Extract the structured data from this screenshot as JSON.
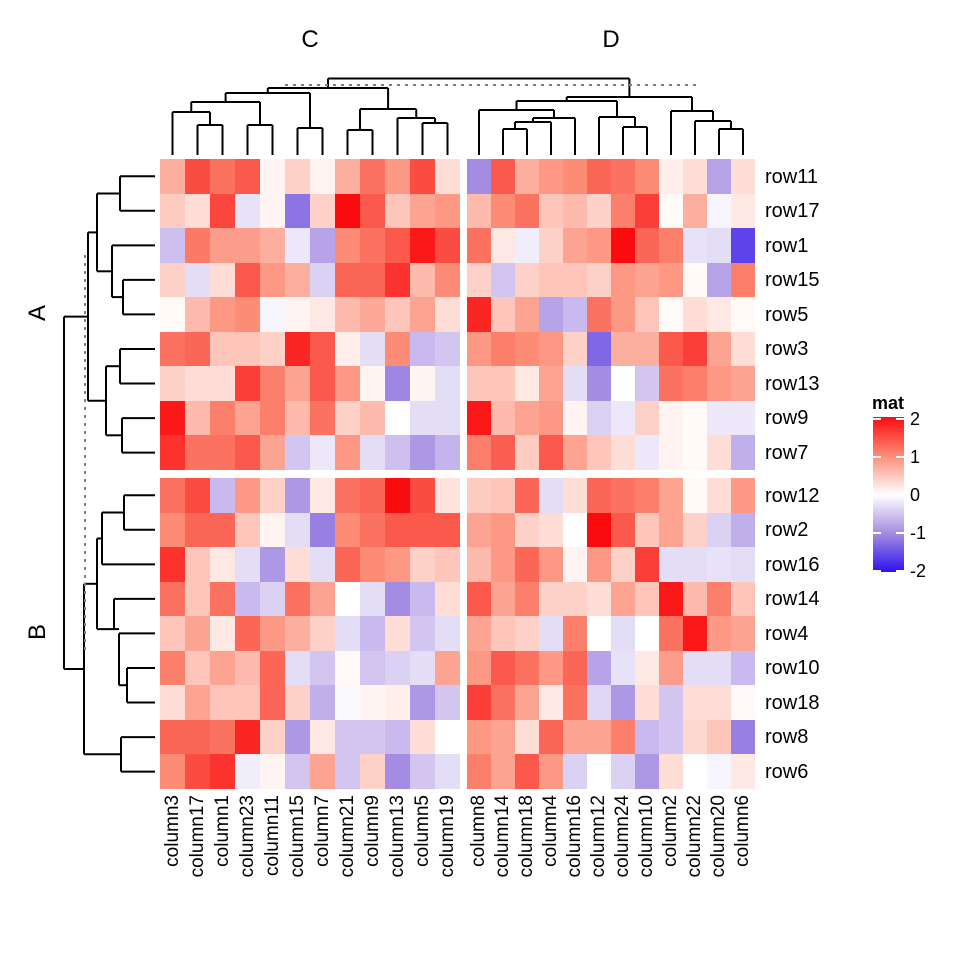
{
  "titles": {
    "col_group_left": "C",
    "col_group_right": "D",
    "row_group_top": "A",
    "row_group_bottom": "B"
  },
  "legend": {
    "title": "mat",
    "ticks": [
      "2",
      "1",
      "0",
      "-1",
      "-2"
    ],
    "tick_values": [
      2,
      1,
      0,
      -1,
      -2
    ]
  },
  "chart_data": {
    "type": "heatmap",
    "legend_title": "mat",
    "value_range": [
      -2,
      2
    ],
    "colormap": [
      [
        -2,
        "#2d12ee"
      ],
      [
        -1,
        "#a48ce2"
      ],
      [
        0,
        "#ffffff"
      ],
      [
        1,
        "#fc8c76"
      ],
      [
        2,
        "#fa0c0e"
      ]
    ],
    "rows": [
      "row11",
      "row17",
      "row1",
      "row15",
      "row5",
      "row3",
      "row13",
      "row9",
      "row7",
      "row12",
      "row2",
      "row16",
      "row14",
      "row4",
      "row10",
      "row18",
      "row8",
      "row6"
    ],
    "columns": [
      "column3",
      "column17",
      "column1",
      "column23",
      "column11",
      "column15",
      "column7",
      "column21",
      "column9",
      "column13",
      "column5",
      "column19",
      "column8",
      "column14",
      "column18",
      "column4",
      "column16",
      "column12",
      "column24",
      "column10",
      "column2",
      "column22",
      "column20",
      "column6"
    ],
    "row_groups": [
      {
        "label": "A",
        "size": 9
      },
      {
        "label": "B",
        "size": 9
      }
    ],
    "column_groups": [
      {
        "label": "C",
        "size": 12
      },
      {
        "label": "D",
        "size": 12
      }
    ],
    "values": [
      [
        0.7,
        1.5,
        1.2,
        1.4,
        0.1,
        0.4,
        0.1,
        0.7,
        1.2,
        0.9,
        1.5,
        0.3,
        -1.0,
        1.4,
        0.7,
        0.9,
        1.0,
        1.3,
        1.2,
        1.0,
        0.15,
        0.3,
        -0.8,
        0.3
      ],
      [
        0.45,
        0.3,
        1.55,
        -0.25,
        0.1,
        -1.2,
        0.4,
        2.0,
        1.4,
        0.5,
        0.8,
        0.9,
        0.6,
        1.0,
        1.2,
        0.5,
        0.6,
        0.4,
        1.1,
        1.6,
        0.05,
        0.7,
        -0.1,
        0.2
      ],
      [
        -0.55,
        1.15,
        0.85,
        0.85,
        0.7,
        -0.2,
        -0.8,
        1.0,
        1.2,
        1.4,
        1.9,
        1.5,
        1.2,
        0.2,
        -0.15,
        0.4,
        0.8,
        0.9,
        2.0,
        1.3,
        1.1,
        -0.25,
        -0.3,
        -1.6
      ],
      [
        0.4,
        -0.3,
        0.3,
        1.4,
        0.9,
        0.7,
        -0.4,
        1.3,
        1.3,
        1.7,
        0.6,
        1.0,
        0.4,
        -0.5,
        0.4,
        0.5,
        0.5,
        0.4,
        0.9,
        0.8,
        0.9,
        0.05,
        -0.8,
        1.1
      ],
      [
        0.05,
        0.6,
        0.9,
        1.0,
        -0.1,
        0.1,
        0.2,
        0.6,
        0.75,
        0.5,
        0.8,
        0.3,
        1.8,
        0.5,
        0.8,
        -0.8,
        -0.6,
        1.2,
        0.9,
        0.5,
        0.05,
        0.3,
        0.2,
        0.05
      ],
      [
        1.2,
        1.3,
        0.5,
        0.5,
        0.4,
        1.8,
        1.4,
        0.15,
        -0.3,
        1.0,
        -0.6,
        -0.5,
        0.9,
        1.1,
        1.0,
        0.9,
        0.4,
        -1.3,
        0.7,
        0.7,
        1.4,
        1.6,
        0.8,
        0.3
      ],
      [
        0.4,
        0.3,
        0.3,
        1.6,
        1.1,
        0.8,
        1.4,
        0.9,
        0.1,
        -1.05,
        0.1,
        -0.3,
        0.5,
        0.5,
        0.2,
        0.8,
        -0.3,
        -1.0,
        0.0,
        -0.5,
        1.2,
        1.1,
        0.9,
        0.8
      ],
      [
        1.9,
        0.6,
        1.1,
        0.8,
        1.1,
        0.6,
        1.2,
        0.4,
        0.6,
        0.0,
        -0.3,
        -0.3,
        1.9,
        0.6,
        0.8,
        0.9,
        0.1,
        -0.4,
        -0.2,
        0.4,
        0.1,
        0.05,
        -0.2,
        -0.2
      ],
      [
        1.7,
        1.2,
        1.2,
        1.4,
        0.8,
        -0.5,
        -0.2,
        0.9,
        -0.3,
        -0.55,
        -0.9,
        -0.65,
        1.1,
        1.35,
        0.45,
        1.4,
        0.8,
        0.5,
        0.3,
        -0.2,
        0.1,
        0.05,
        0.3,
        -0.7
      ],
      [
        1.2,
        1.5,
        -0.6,
        0.9,
        0.4,
        -0.9,
        0.2,
        1.2,
        1.3,
        2.0,
        1.5,
        0.25,
        0.45,
        0.5,
        1.3,
        -0.3,
        0.3,
        1.3,
        1.2,
        1.1,
        0.8,
        0.05,
        0.3,
        0.9
      ],
      [
        1.0,
        1.3,
        1.3,
        0.5,
        0.1,
        -0.3,
        -1.1,
        1.0,
        1.2,
        1.4,
        1.4,
        1.4,
        0.8,
        0.9,
        0.4,
        0.3,
        0.0,
        2.0,
        1.4,
        0.5,
        0.8,
        0.4,
        -0.4,
        -0.7
      ],
      [
        1.7,
        0.5,
        0.2,
        -0.3,
        -0.9,
        0.3,
        -0.3,
        1.3,
        1.0,
        0.9,
        0.4,
        0.5,
        0.6,
        0.9,
        1.3,
        0.9,
        0.1,
        0.9,
        0.4,
        1.6,
        -0.3,
        -0.3,
        -0.25,
        -0.3
      ],
      [
        1.2,
        0.5,
        1.2,
        -0.6,
        -0.4,
        1.2,
        0.8,
        0.0,
        -0.3,
        -1.0,
        -0.6,
        0.3,
        1.4,
        0.8,
        1.1,
        0.4,
        0.4,
        0.3,
        0.8,
        0.5,
        1.9,
        0.6,
        1.1,
        0.5
      ],
      [
        0.5,
        0.8,
        0.2,
        1.3,
        0.9,
        0.7,
        0.4,
        -0.3,
        -0.6,
        0.3,
        -0.5,
        -0.3,
        0.8,
        0.5,
        0.4,
        -0.3,
        1.1,
        0.0,
        -0.3,
        0.0,
        1.2,
        1.9,
        0.9,
        0.8
      ],
      [
        1.1,
        0.5,
        0.8,
        0.6,
        1.3,
        -0.3,
        -0.5,
        0.05,
        -0.5,
        -0.4,
        -0.3,
        0.8,
        0.9,
        1.4,
        1.2,
        0.9,
        1.3,
        -0.8,
        -0.25,
        0.2,
        0.85,
        -0.3,
        -0.3,
        -0.6
      ],
      [
        0.3,
        0.8,
        0.5,
        0.5,
        1.3,
        0.4,
        -0.7,
        -0.05,
        0.1,
        0.15,
        -0.9,
        -0.5,
        1.6,
        1.2,
        0.8,
        0.2,
        1.2,
        -0.35,
        -0.9,
        0.3,
        -0.5,
        0.3,
        0.3,
        0.05
      ],
      [
        1.3,
        1.3,
        1.2,
        1.8,
        0.4,
        -0.9,
        0.2,
        -0.5,
        -0.5,
        -0.6,
        0.3,
        0.0,
        0.9,
        0.8,
        0.3,
        1.3,
        0.8,
        0.8,
        1.1,
        -0.6,
        -0.5,
        0.35,
        0.5,
        -1.1
      ],
      [
        1.0,
        1.5,
        1.7,
        -0.15,
        0.1,
        -0.5,
        0.8,
        -0.5,
        0.4,
        -1.0,
        -0.5,
        -0.3,
        1.1,
        0.8,
        1.4,
        0.9,
        -0.4,
        0.0,
        -0.4,
        -0.9,
        0.3,
        0.0,
        -0.1,
        0.2
      ]
    ],
    "dendrograms": {
      "column_segments": [
        [
          197.5,
          125,
          222.5,
          125
        ],
        [
          197.5,
          125,
          197.5,
          155
        ],
        [
          222.5,
          125,
          222.5,
          155
        ],
        [
          172.5,
          112,
          210,
          112
        ],
        [
          172.5,
          112,
          172.5,
          155
        ],
        [
          210,
          112,
          210,
          125
        ],
        [
          247.5,
          125,
          272.5,
          125
        ],
        [
          247.5,
          125,
          247.5,
          155
        ],
        [
          272.5,
          125,
          272.5,
          155
        ],
        [
          191.25,
          102,
          260,
          102
        ],
        [
          191.25,
          102,
          191.25,
          112
        ],
        [
          260,
          102,
          260,
          125
        ],
        [
          297.5,
          128,
          322.5,
          128
        ],
        [
          297.5,
          128,
          297.5,
          155
        ],
        [
          322.5,
          128,
          322.5,
          155
        ],
        [
          225.6,
          93,
          310,
          93
        ],
        [
          225.6,
          93,
          225.6,
          102
        ],
        [
          310,
          93,
          310,
          128
        ],
        [
          347.5,
          130,
          372.5,
          130
        ],
        [
          347.5,
          130,
          347.5,
          155
        ],
        [
          372.5,
          130,
          372.5,
          155
        ],
        [
          422.5,
          123,
          447.5,
          123
        ],
        [
          422.5,
          123,
          422.5,
          155
        ],
        [
          447.5,
          123,
          447.5,
          155
        ],
        [
          397.5,
          118,
          435,
          118
        ],
        [
          397.5,
          118,
          397.5,
          155
        ],
        [
          435,
          118,
          435,
          123
        ],
        [
          360,
          109,
          416.25,
          109
        ],
        [
          360,
          109,
          360,
          130
        ],
        [
          416.25,
          109,
          416.25,
          118
        ],
        [
          267.8,
          88,
          388.1,
          88
        ],
        [
          267.8,
          88,
          267.8,
          93
        ],
        [
          388.1,
          88,
          388.1,
          109
        ],
        [
          503,
          129,
          527,
          129
        ],
        [
          503,
          129,
          503,
          155
        ],
        [
          527,
          129,
          527,
          155
        ],
        [
          515,
          122,
          551,
          122
        ],
        [
          515,
          122,
          515,
          129
        ],
        [
          551,
          122,
          551,
          155
        ],
        [
          533,
          118,
          575,
          118
        ],
        [
          533,
          118,
          533,
          122
        ],
        [
          575,
          118,
          575,
          155
        ],
        [
          479,
          110,
          554,
          110
        ],
        [
          479,
          110,
          479,
          155
        ],
        [
          554,
          110,
          554,
          118
        ],
        [
          623,
          127,
          647,
          127
        ],
        [
          623,
          127,
          623,
          155
        ],
        [
          647,
          127,
          647,
          155
        ],
        [
          599,
          117,
          635,
          117
        ],
        [
          599,
          117,
          599,
          155
        ],
        [
          635,
          117,
          635,
          127
        ],
        [
          516.5,
          101,
          617,
          101
        ],
        [
          516.5,
          101,
          516.5,
          110
        ],
        [
          617,
          101,
          617,
          117
        ],
        [
          719,
          129,
          743,
          129
        ],
        [
          719,
          129,
          719,
          155
        ],
        [
          743,
          129,
          743,
          155
        ],
        [
          695,
          121,
          731,
          121
        ],
        [
          695,
          121,
          695,
          155
        ],
        [
          731,
          121,
          731,
          129
        ],
        [
          671,
          111,
          713,
          111
        ],
        [
          671,
          111,
          671,
          155
        ],
        [
          713,
          111,
          713,
          121
        ],
        [
          566.75,
          97,
          692,
          97
        ],
        [
          566.75,
          97,
          566.75,
          101
        ],
        [
          692,
          97,
          692,
          111
        ],
        [
          328,
          78.5,
          629.4,
          78.5
        ],
        [
          328,
          78.5,
          328,
          88
        ],
        [
          629.4,
          78.5,
          629.4,
          97
        ]
      ],
      "row_segments": [
        [
          120,
          176.3,
          120,
          210.8
        ],
        [
          120,
          176.3,
          155,
          176.3
        ],
        [
          120,
          210.8,
          155,
          210.8
        ],
        [
          123,
          279.9,
          123,
          314.4
        ],
        [
          123,
          279.9,
          155,
          279.9
        ],
        [
          123,
          314.4,
          155,
          314.4
        ],
        [
          112,
          245.4,
          112,
          297.1
        ],
        [
          112,
          245.4,
          155,
          245.4
        ],
        [
          112,
          297.1,
          123,
          297.1
        ],
        [
          97,
          193.5,
          97,
          271.3
        ],
        [
          97,
          193.5,
          120,
          193.5
        ],
        [
          97,
          271.3,
          112,
          271.3
        ],
        [
          120,
          349,
          120,
          383.5
        ],
        [
          120,
          349,
          155,
          349
        ],
        [
          120,
          383.5,
          155,
          383.5
        ],
        [
          122,
          418.1,
          122,
          452.6
        ],
        [
          122,
          418.1,
          155,
          418.1
        ],
        [
          122,
          452.6,
          155,
          452.6
        ],
        [
          106,
          366.2,
          106,
          435.3
        ],
        [
          106,
          366.2,
          120,
          366.2
        ],
        [
          106,
          435.3,
          122,
          435.3
        ],
        [
          88,
          232.4,
          88,
          400.8
        ],
        [
          88,
          232.4,
          97,
          232.4
        ],
        [
          88,
          400.8,
          106,
          400.8
        ],
        [
          124,
          495.3,
          124,
          529.8
        ],
        [
          124,
          495.3,
          155,
          495.3
        ],
        [
          124,
          529.8,
          155,
          529.8
        ],
        [
          102,
          512.5,
          102,
          564.4
        ],
        [
          102,
          512.5,
          124,
          512.5
        ],
        [
          102,
          564.4,
          155,
          564.4
        ],
        [
          127,
          668,
          127,
          702.5
        ],
        [
          127,
          668,
          155,
          668
        ],
        [
          127,
          702.5,
          155,
          702.5
        ],
        [
          119,
          633.4,
          119,
          685.2
        ],
        [
          119,
          633.4,
          155,
          633.4
        ],
        [
          119,
          685.2,
          127,
          685.2
        ],
        [
          114,
          598.9,
          114,
          629.1
        ],
        [
          114,
          598.9,
          155,
          598.9
        ],
        [
          114,
          629.1,
          119,
          629.1
        ],
        [
          97,
          538.5,
          97,
          629.1
        ],
        [
          97,
          538.5,
          102,
          538.5
        ],
        [
          97,
          629.1,
          114,
          629.1
        ],
        [
          121,
          737.1,
          121,
          771.6
        ],
        [
          121,
          737.1,
          155,
          737.1
        ],
        [
          121,
          771.6,
          155,
          771.6
        ],
        [
          84,
          583.8,
          84,
          754.3
        ],
        [
          84,
          583.8,
          97,
          583.8
        ],
        [
          84,
          754.3,
          121,
          754.3
        ],
        [
          64,
          316.6,
          64,
          669
        ],
        [
          64,
          316.6,
          88,
          316.6
        ],
        [
          64,
          669,
          84,
          669
        ]
      ],
      "column_cut_line": [
        285,
        85,
        697,
        85
      ],
      "row_cut_line": [
        85,
        255,
        85,
        650
      ]
    }
  }
}
